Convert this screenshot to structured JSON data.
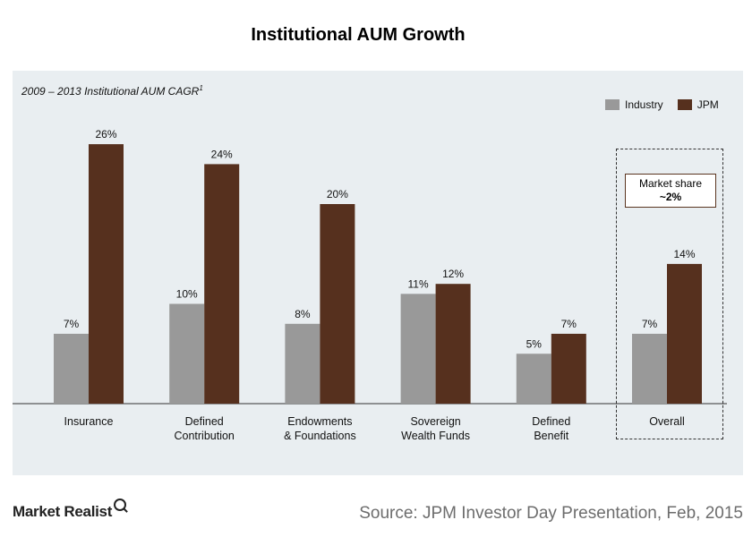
{
  "title": "Institutional AUM Growth",
  "subtitle": "2009 – 2013 Institutional AUM CAGR",
  "subtitle_footnote": "1",
  "colors": {
    "industry": "#999999",
    "jpm": "#56301e",
    "panel": "#e9eef1"
  },
  "overall_callout": {
    "line1": "Market share",
    "line2": "~2%"
  },
  "footer": {
    "brand": "Market Realist",
    "source": "Source: JPM Investor Day Presentation, Feb, 2015"
  },
  "chart_data": {
    "type": "bar",
    "title": "Institutional AUM Growth",
    "categories": [
      [
        "Insurance"
      ],
      [
        "Defined",
        "Contribution"
      ],
      [
        "Endowments",
        "& Foundations"
      ],
      [
        "Sovereign",
        "Wealth Funds"
      ],
      [
        "Defined",
        "Benefit"
      ],
      [
        "Overall"
      ]
    ],
    "series": [
      {
        "name": "Industry",
        "values": [
          7,
          10,
          8,
          11,
          5,
          7
        ]
      },
      {
        "name": "JPM",
        "values": [
          26,
          24,
          20,
          12,
          7,
          14
        ]
      }
    ],
    "value_suffix": "%",
    "ylim": [
      0,
      30
    ],
    "legend": "top-right",
    "grid": false
  }
}
